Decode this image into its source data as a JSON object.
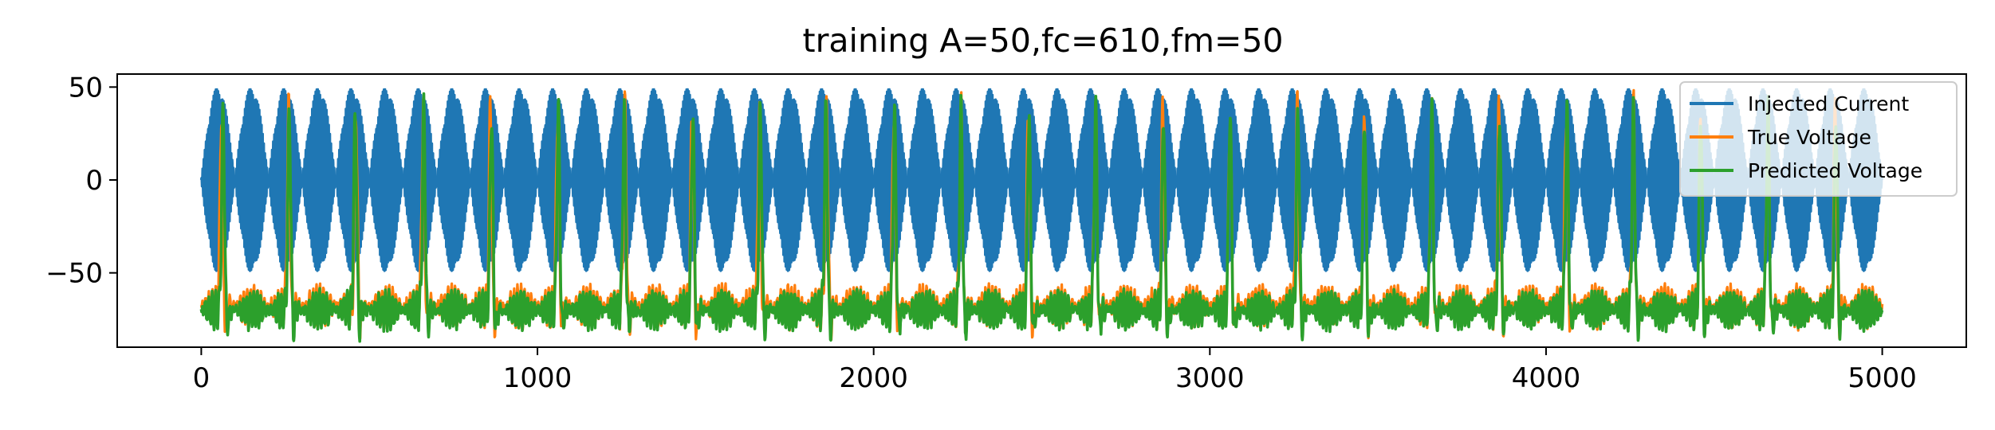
{
  "chart_data": {
    "type": "line",
    "title": "training A=50,fc=610,fm=50",
    "xlabel": "",
    "ylabel": "",
    "xlim": [
      -250,
      5250
    ],
    "ylim": [
      -90,
      57
    ],
    "x_ticks": [
      0,
      1000,
      2000,
      3000,
      4000,
      5000
    ],
    "x_tick_labels": [
      "0",
      "1000",
      "2000",
      "3000",
      "4000",
      "5000"
    ],
    "y_ticks": [
      50,
      0,
      -50
    ],
    "y_tick_labels": [
      "50",
      "0",
      "−50"
    ],
    "grid": false,
    "legend_position": "top-right",
    "series": [
      {
        "name": "Injected Current",
        "color": "#1f77b4",
        "description_formula": "A*sin(2*pi*fm*t)*sin(2*pi*fc*t)",
        "amplitude": 50,
        "carrier_frequency": 610,
        "modulation_frequency": 50,
        "x_range": [
          0,
          5000
        ]
      },
      {
        "name": "True Voltage",
        "color": "#ff7f0e",
        "baseline": -68,
        "spike_peak": 38,
        "spike_times": [
          60,
          260,
          460,
          660,
          860,
          1060,
          1260,
          1460,
          1660,
          1860,
          2060,
          2260,
          2460,
          2660,
          2860,
          3060,
          3260,
          3460,
          3660,
          3860,
          4060,
          4260,
          4460,
          4660,
          4860
        ],
        "x_range": [
          0,
          5000
        ]
      },
      {
        "name": "Predicted Voltage",
        "color": "#2ca02c",
        "baseline": -70,
        "spike_peak": 36,
        "spike_times": [
          65,
          262,
          458,
          662,
          863,
          1062,
          1258,
          1462,
          1663,
          1858,
          2062,
          2260,
          2462,
          2660,
          2862,
          3060,
          3262,
          3460,
          3660,
          3862,
          4062,
          4260,
          4460,
          4660,
          4862
        ],
        "x_range": [
          0,
          5000
        ]
      }
    ]
  }
}
